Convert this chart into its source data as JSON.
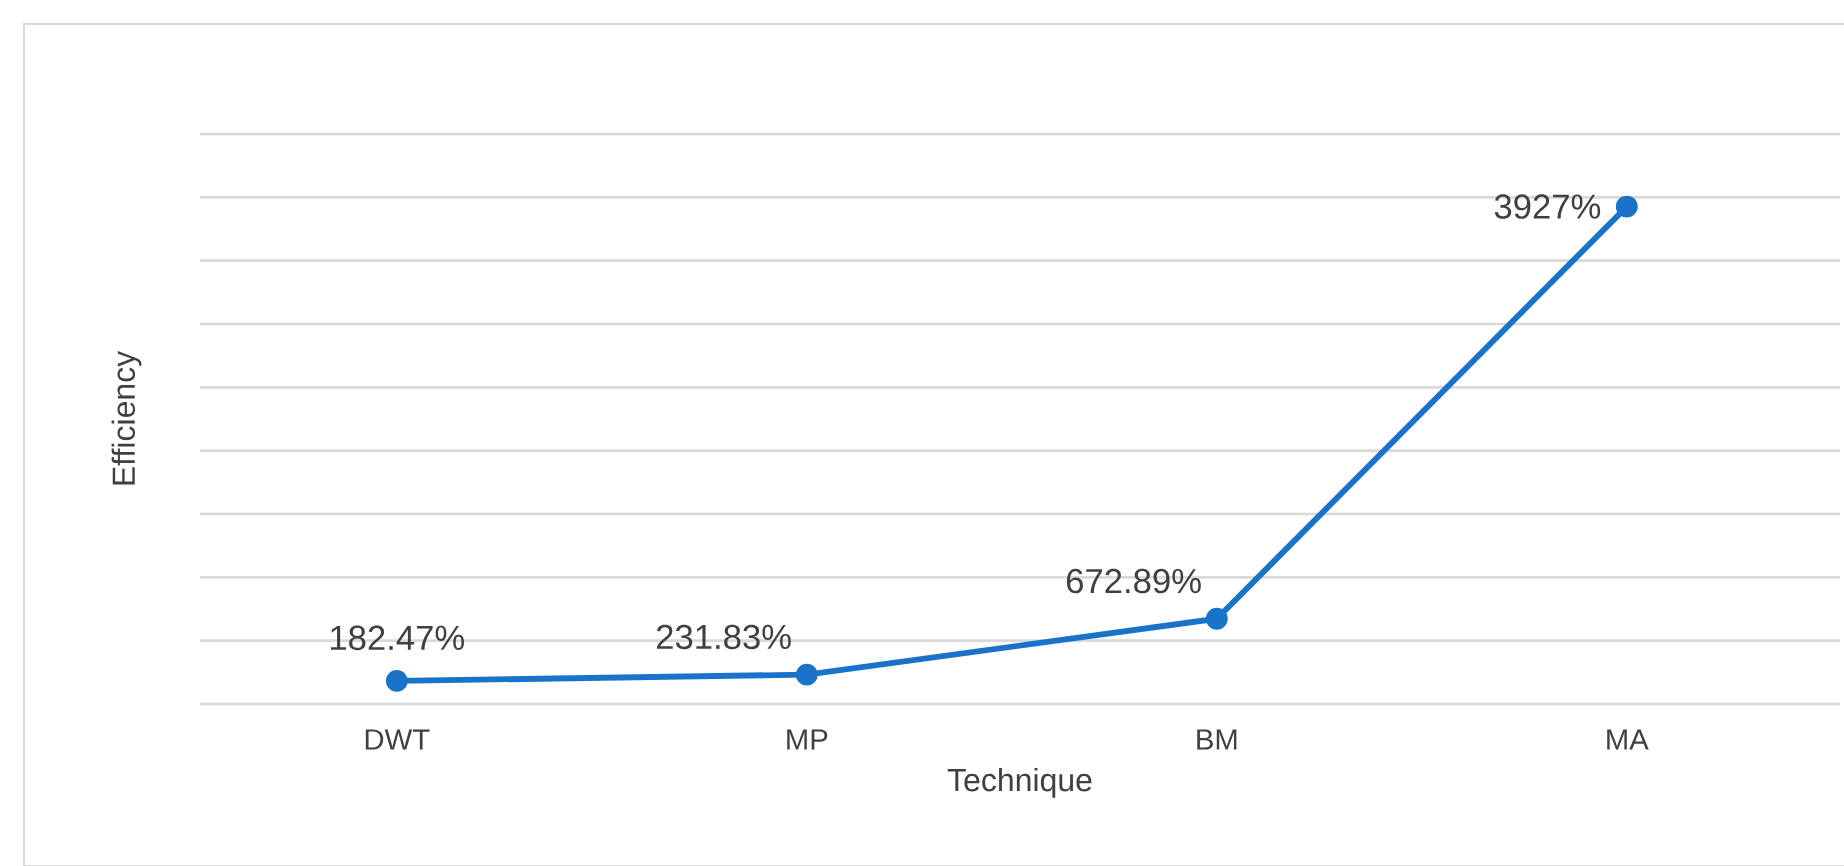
{
  "chart_data": {
    "type": "line",
    "xlabel": "Technique",
    "ylabel": "Efficiency",
    "categories": [
      "DWT",
      "MP",
      "BM",
      "MA"
    ],
    "values": [
      182.47,
      231.83,
      672.89,
      3927
    ],
    "value_labels": [
      "182.47%",
      "231.83%",
      "672.89%",
      "3927%"
    ],
    "color": "#1a73c9",
    "ylim": [
      0,
      4500
    ],
    "yticks": [
      {
        "value": 0,
        "label": null
      },
      {
        "value": 500,
        "label": null
      },
      {
        "value": 1000,
        "label": null
      },
      {
        "value": 1500,
        "label": null
      },
      {
        "value": 2000,
        "label": null
      },
      {
        "value": 2500,
        "label": null
      },
      {
        "value": 3000,
        "label": null
      },
      {
        "value": 3500,
        "label": null
      },
      {
        "value": 4000,
        "label": null
      },
      {
        "value": 4500,
        "label": null
      }
    ],
    "grid": "y",
    "tick_labels": "x",
    "marker": "circle",
    "line_style": "solid"
  }
}
